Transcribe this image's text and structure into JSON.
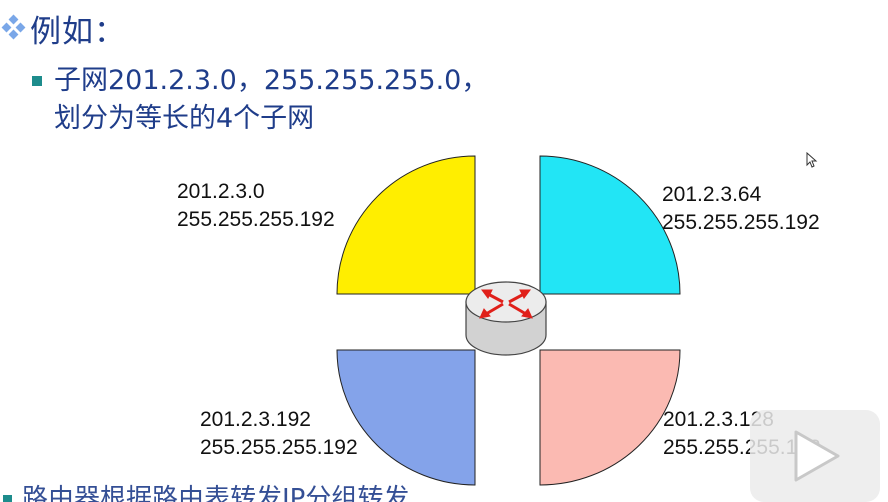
{
  "heading": {
    "text": "例如："
  },
  "bullet": {
    "line1": "子网201.2.3.0，255.255.255.0，",
    "line2": "划分为等长的4个子网"
  },
  "subnets": {
    "top_left": {
      "address": "201.2.3.0",
      "mask": "255.255.255.192",
      "color": "#ffee00"
    },
    "top_right": {
      "address": "201.2.3.64",
      "mask": "255.255.255.192",
      "color": "#22e5f5"
    },
    "bottom_left": {
      "address": "201.2.3.192",
      "mask": "255.255.255.192",
      "color": "#84a3ea"
    },
    "bottom_right": {
      "address": "201.2.3.128",
      "mask": "255.255.255.192",
      "color": "#fbbab2"
    }
  },
  "colors": {
    "text_blue": "#1f3d8a",
    "bullet_teal": "#1d8c8c",
    "router_arrows": "#e0201a"
  },
  "partial_line": {
    "text": "路由器根据路由表转发IP分组转发"
  },
  "icons": [
    "diamond-bullet-icon",
    "router-icon",
    "cursor-icon",
    "play-icon"
  ]
}
